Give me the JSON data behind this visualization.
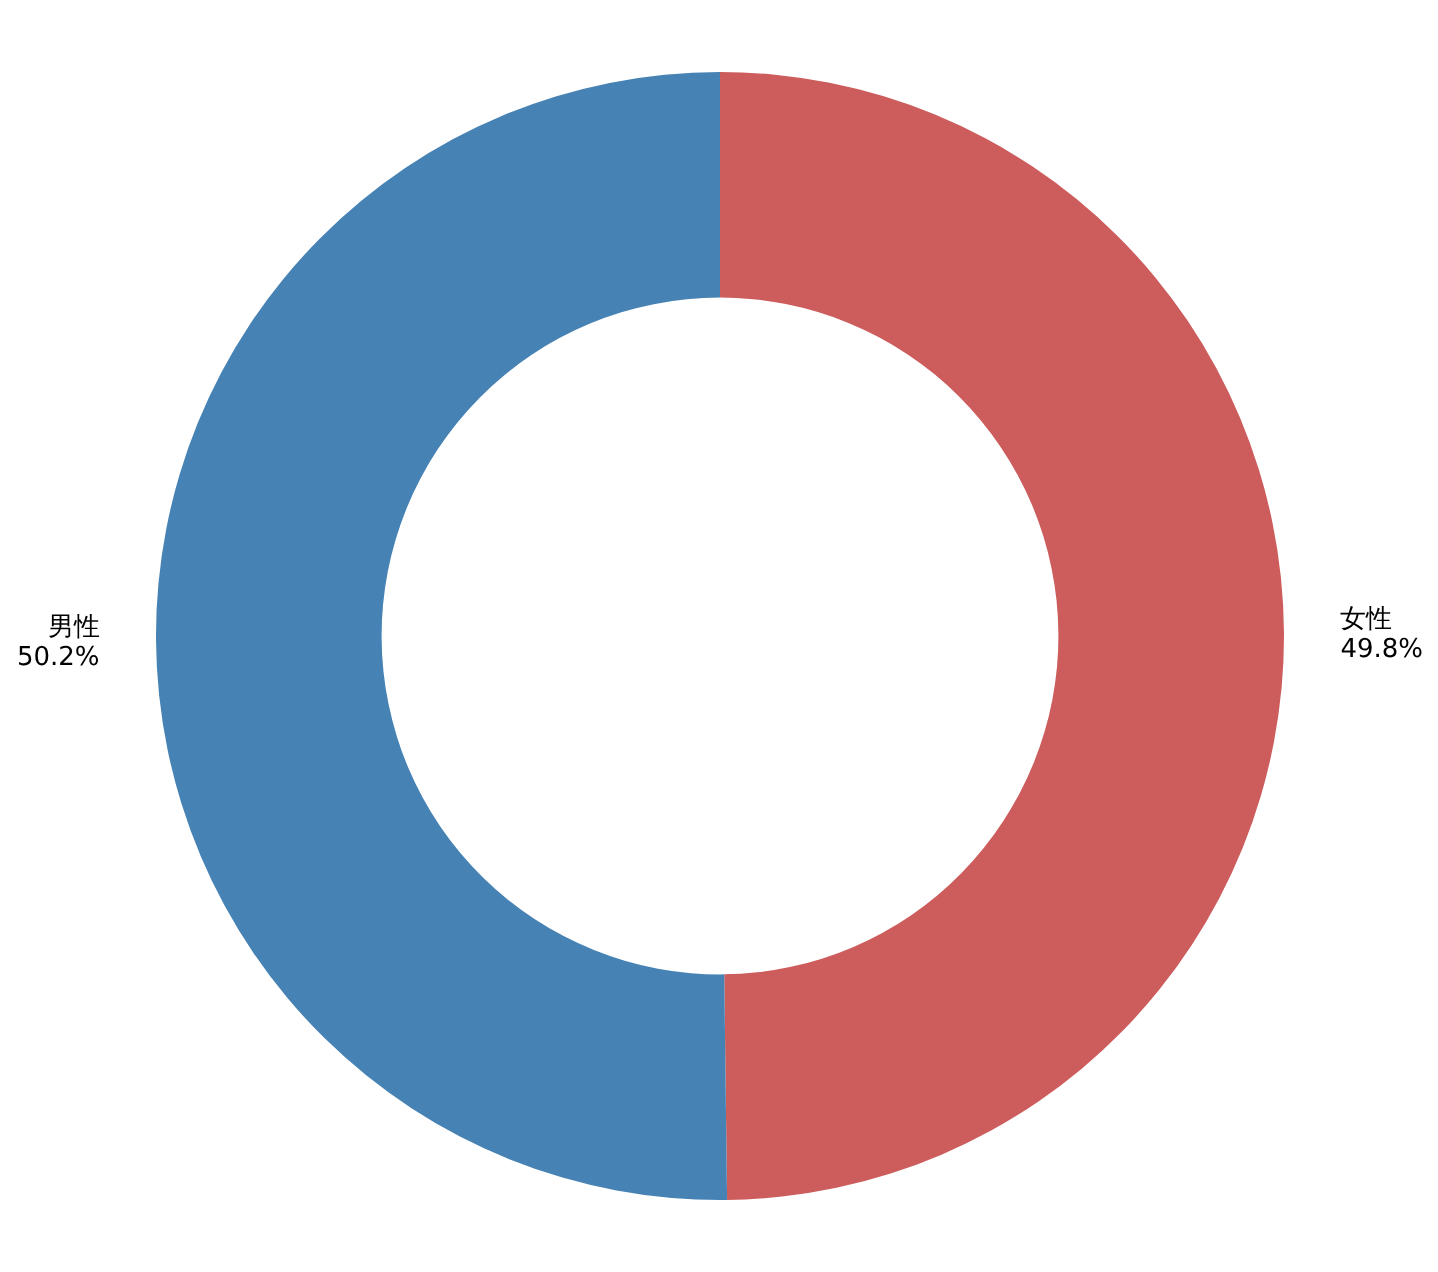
{
  "chart_data": {
    "type": "donut",
    "categories": [
      "女性",
      "男性"
    ],
    "values": [
      49.8,
      50.2
    ],
    "value_labels": [
      "49.8%",
      "50.2%"
    ],
    "colors": [
      "#cd5c5c",
      "#4682b4"
    ]
  }
}
